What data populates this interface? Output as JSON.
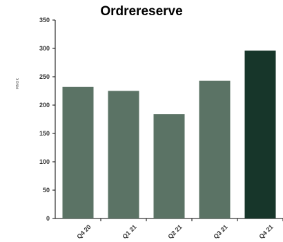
{
  "chart_data": {
    "type": "bar",
    "title": "Ordrereserve",
    "ylabel": "MNOK",
    "xlabel": "",
    "categories": [
      "Q4 20",
      "Q1 21",
      "Q2 21",
      "Q3 21",
      "Q4 21"
    ],
    "values": [
      232,
      225,
      184,
      243,
      296
    ],
    "ylim": [
      0,
      350
    ],
    "yticks": [
      0,
      50,
      100,
      150,
      200,
      250,
      300,
      350
    ],
    "grid": false,
    "legend": "none",
    "colors": {
      "bar": "#5b7365",
      "highlight": "#17362a",
      "axis": "#000000"
    },
    "highlight_index": 4
  }
}
